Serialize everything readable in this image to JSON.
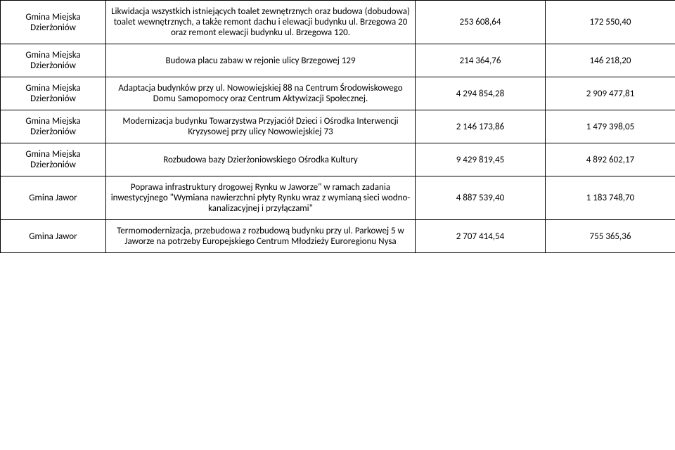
{
  "table": {
    "columns": {
      "location_width": 150,
      "description_width": 440,
      "value1_width": 185,
      "value2_width": 185
    },
    "rows": [
      {
        "location": "Gmina Miejska Dzierżoniów",
        "description": "Likwidacja wszystkich istniejących toalet zewnętrznych oraz budowa (dobudowa) toalet wewnętrznych, a także remont dachu i elewacji budynku ul. Brzegowa 20 oraz remont elewacji budynku ul. Brzegowa 120.",
        "value1": "253 608,64",
        "value2": "172 550,40"
      },
      {
        "location": "Gmina Miejska Dzierżoniów",
        "description": "Budowa placu zabaw w rejonie ulicy Brzegowej 129",
        "value1": "214 364,76",
        "value2": "146 218,20"
      },
      {
        "location": "Gmina Miejska Dzierżoniów",
        "description": "Adaptacja budynków przy ul. Nowowiejskiej 88 na Centrum Środowiskowego Domu Samopomocy oraz Centrum Aktywizacji Społecznej.",
        "value1": "4 294 854,28",
        "value2": "2 909 477,81"
      },
      {
        "location": "Gmina Miejska Dzierżoniów",
        "description": "Modernizacja budynku Towarzystwa Przyjaciół Dzieci i Ośrodka Interwencji Kryzysowej przy ulicy Nowowiejskiej 73",
        "value1": "2 146 173,86",
        "value2": "1 479 398,05"
      },
      {
        "location": "Gmina Miejska Dzierżoniów",
        "description": "Rozbudowa bazy Dzierżoniowskiego Ośrodka Kultury",
        "value1": "9 429 819,45",
        "value2": "4 892 602,17"
      },
      {
        "location": "Gmina Jawor",
        "description": "Poprawa infrastruktury drogowej Rynku w Jaworze\" w ramach zadania inwestycyjnego \"Wymiana nawierzchni płyty Rynku wraz z wymianą sieci wodno-kanalizacyjnej i przyłączami\"",
        "value1": "4 887 539,40",
        "value2": "1 183 748,70"
      },
      {
        "location": "Gmina Jawor",
        "description": "Termomodernizacja, przebudowa z rozbudową budynku przy ul. Parkowej 5 w Jaworze na potrzeby Europejskiego Centrum Młodzieży Euroregionu Nysa",
        "value1": "2 707 414,54",
        "value2": "755 365,36"
      }
    ]
  },
  "style": {
    "font_family": "Calibri, Arial, sans-serif",
    "font_size_pt": 10,
    "text_color": "#000000",
    "border_color": "#000000",
    "background_color": "#ffffff"
  }
}
